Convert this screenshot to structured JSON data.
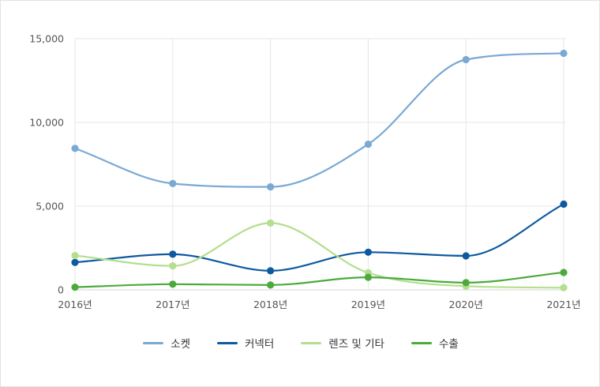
{
  "chart_data": {
    "type": "line",
    "title": "",
    "xlabel": "",
    "ylabel": "",
    "categories": [
      "2016년",
      "2017년",
      "2018년",
      "2019년",
      "2020년",
      "2021년"
    ],
    "ylim": [
      0,
      15000
    ],
    "yticks": [
      0,
      5000,
      10000,
      15000
    ],
    "ytick_labels": [
      "0",
      "5,000",
      "10,000",
      "15,000"
    ],
    "grid": true,
    "curve": "smooth",
    "legend_position": "bottom",
    "series": [
      {
        "name": "소켓",
        "color": "#7aa9d4",
        "values": [
          8450,
          6350,
          6150,
          8700,
          13750,
          14130
        ]
      },
      {
        "name": "커넥터",
        "color": "#0e5aa0",
        "values": [
          1640,
          2130,
          1140,
          2250,
          2030,
          5120
        ]
      },
      {
        "name": "렌즈 및 기타",
        "color": "#b3df8e",
        "values": [
          2050,
          1430,
          3990,
          1020,
          220,
          130
        ]
      },
      {
        "name": "수출",
        "color": "#4caa3c",
        "values": [
          160,
          340,
          290,
          750,
          430,
          1040
        ]
      }
    ]
  }
}
